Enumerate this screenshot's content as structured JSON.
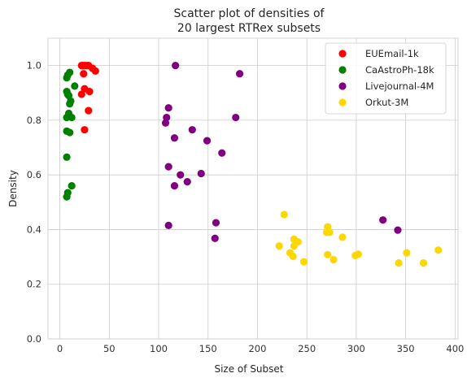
{
  "chart_data": {
    "type": "scatter",
    "title": [
      "Scatter plot of densities of",
      "20 largest RTRex subsets"
    ],
    "xlabel": "Size of Subset",
    "ylabel": "Density",
    "xlim": [
      -12,
      403
    ],
    "ylim": [
      0.0,
      1.1
    ],
    "xticks": [
      0,
      50,
      100,
      150,
      200,
      250,
      300,
      350,
      400
    ],
    "yticks": [
      0.0,
      0.2,
      0.4,
      0.6,
      0.8,
      1.0
    ],
    "grid": true,
    "legend_position": "top-right",
    "series": [
      {
        "name": "EUEmail-1k",
        "color": "#ff0000",
        "points": [
          [
            22,
            1.0
          ],
          [
            23,
            1.0
          ],
          [
            25,
            1.0
          ],
          [
            27,
            1.0
          ],
          [
            29,
            1.0
          ],
          [
            24,
            0.97
          ],
          [
            33,
            0.99
          ],
          [
            36,
            0.98
          ],
          [
            22,
            0.895
          ],
          [
            25,
            0.915
          ],
          [
            30,
            0.905
          ],
          [
            29,
            0.835
          ],
          [
            25,
            0.765
          ]
        ]
      },
      {
        "name": "CaAstroPh-18k",
        "color": "#008000",
        "points": [
          [
            7,
            0.955
          ],
          [
            8,
            0.965
          ],
          [
            10,
            0.975
          ],
          [
            15,
            0.925
          ],
          [
            7,
            0.905
          ],
          [
            8,
            0.895
          ],
          [
            9,
            0.89
          ],
          [
            11,
            0.87
          ],
          [
            10,
            0.86
          ],
          [
            9,
            0.825
          ],
          [
            7,
            0.81
          ],
          [
            12,
            0.81
          ],
          [
            7,
            0.76
          ],
          [
            10,
            0.755
          ],
          [
            7,
            0.665
          ],
          [
            12,
            0.56
          ],
          [
            8,
            0.535
          ],
          [
            7,
            0.52
          ]
        ]
      },
      {
        "name": "Livejournal-4M",
        "color": "#800080",
        "points": [
          [
            117,
            1.0
          ],
          [
            182,
            0.97
          ],
          [
            110,
            0.845
          ],
          [
            108,
            0.81
          ],
          [
            178,
            0.81
          ],
          [
            107,
            0.79
          ],
          [
            134,
            0.765
          ],
          [
            116,
            0.735
          ],
          [
            149,
            0.725
          ],
          [
            164,
            0.68
          ],
          [
            110,
            0.63
          ],
          [
            122,
            0.6
          ],
          [
            143,
            0.605
          ],
          [
            129,
            0.575
          ],
          [
            116,
            0.56
          ],
          [
            327,
            0.435
          ],
          [
            158,
            0.425
          ],
          [
            110,
            0.415
          ],
          [
            342,
            0.398
          ],
          [
            157,
            0.368
          ]
        ]
      },
      {
        "name": "Orkut-3M",
        "color": "#ffd700",
        "points": [
          [
            227,
            0.455
          ],
          [
            271,
            0.41
          ],
          [
            222,
            0.34
          ],
          [
            237,
            0.365
          ],
          [
            241,
            0.355
          ],
          [
            237,
            0.34
          ],
          [
            233,
            0.315
          ],
          [
            236,
            0.302
          ],
          [
            247,
            0.282
          ],
          [
            270,
            0.39
          ],
          [
            273,
            0.39
          ],
          [
            286,
            0.372
          ],
          [
            271,
            0.308
          ],
          [
            277,
            0.29
          ],
          [
            302,
            0.31
          ],
          [
            299,
            0.305
          ],
          [
            343,
            0.278
          ],
          [
            351,
            0.315
          ],
          [
            368,
            0.278
          ],
          [
            383,
            0.325
          ]
        ]
      }
    ]
  }
}
